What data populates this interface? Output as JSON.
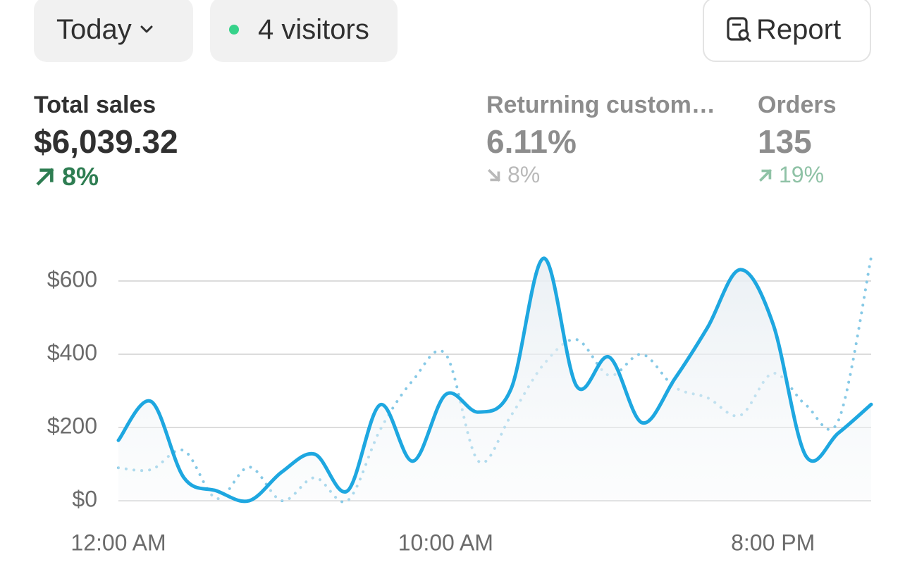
{
  "header": {
    "period": "Today",
    "visitors": "4 visitors",
    "report": "Report"
  },
  "metrics": [
    {
      "label": "Total sales",
      "value": "$6,039.32",
      "change": "8%",
      "direction": "up"
    },
    {
      "label": "Returning custom…",
      "value": "6.11%",
      "change": "8%",
      "direction": "down"
    },
    {
      "label": "Orders",
      "value": "135",
      "change": "19%",
      "direction": "up"
    }
  ],
  "chart_data": {
    "type": "line",
    "x": [
      0,
      1,
      2,
      3,
      4,
      5,
      6,
      7,
      8,
      9,
      10,
      11,
      12,
      13,
      14,
      15,
      16,
      17,
      18,
      19,
      20,
      21,
      22,
      23
    ],
    "series": [
      {
        "color": "#1ea7e0",
        "style": "solid",
        "area": true,
        "values": [
          165,
          271,
          63,
          27,
          0,
          79,
          127,
          27,
          262,
          108,
          290,
          242,
          306,
          662,
          313,
          392,
          213,
          333,
          473,
          631,
          483,
          123,
          185,
          263
        ]
      },
      {
        "color": "#86c9e6",
        "style": "dotted",
        "area": false,
        "values": [
          90,
          85,
          137,
          6,
          92,
          0,
          63,
          0,
          194,
          329,
          400,
          108,
          233,
          373,
          440,
          342,
          400,
          310,
          281,
          233,
          348,
          262,
          219,
          665
        ]
      }
    ],
    "xlim": [
      0,
      23
    ],
    "xticks": [
      {
        "value": 0,
        "label": "12:00 AM"
      },
      {
        "value": 10,
        "label": "10:00 AM"
      },
      {
        "value": 20,
        "label": "8:00 PM"
      }
    ],
    "ylim": [
      0,
      700
    ],
    "yticks": [
      {
        "value": 0,
        "label": "$0"
      },
      {
        "value": 200,
        "label": "$200"
      },
      {
        "value": 400,
        "label": "$400"
      },
      {
        "value": 600,
        "label": "$600"
      }
    ],
    "grid": true
  }
}
